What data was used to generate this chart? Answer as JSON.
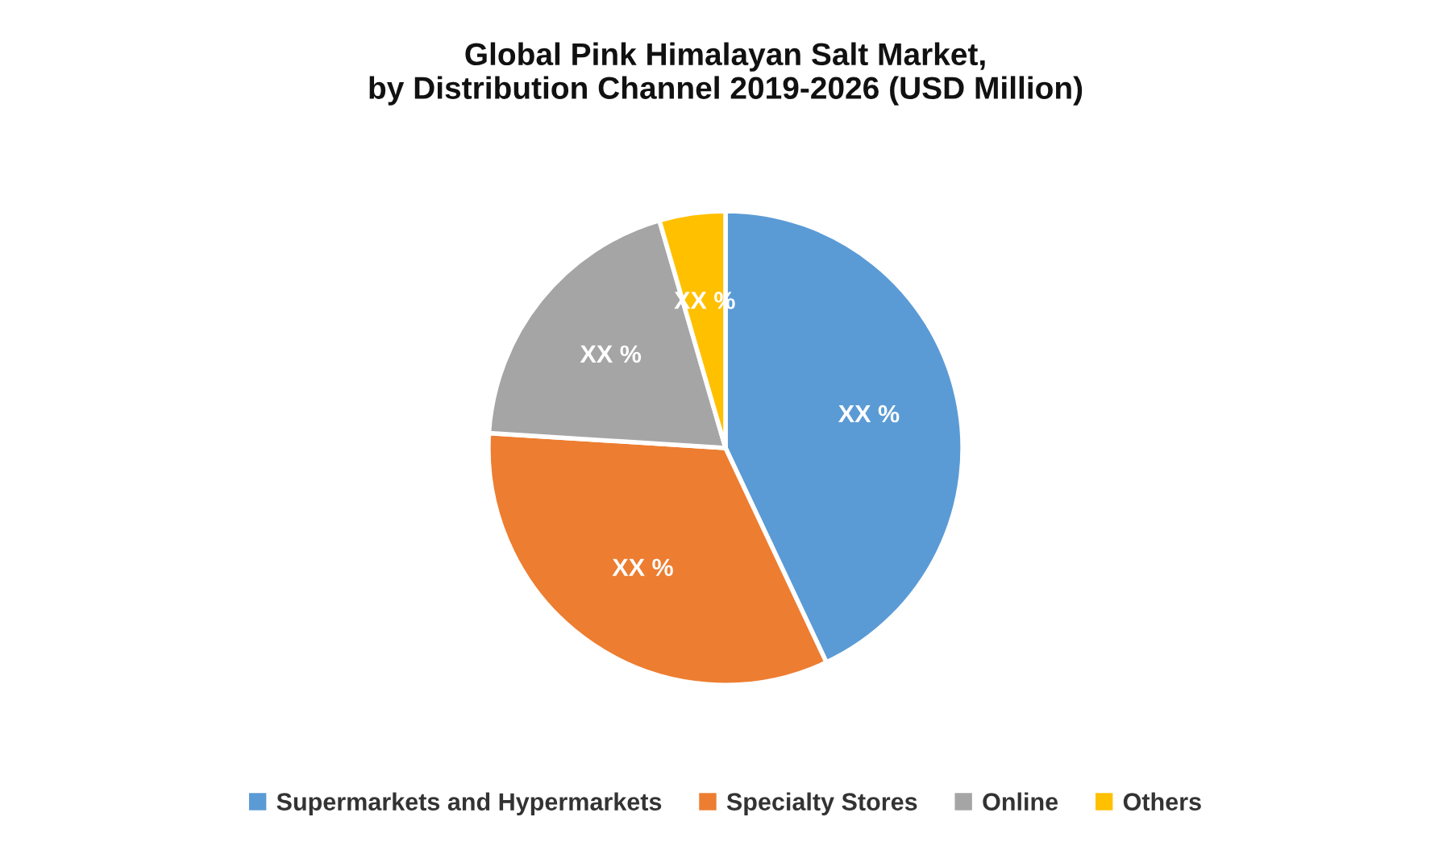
{
  "chart_data": {
    "type": "pie",
    "title": "Global Pink Himalayan Salt Market,\nby Distribution Channel 2019-2026 (USD Million)",
    "categories": [
      "Supermarkets and Hypermarkets",
      "Specialty Stores",
      "Online",
      "Others"
    ],
    "values": [
      43,
      33,
      19.5,
      4.5
    ],
    "colors": [
      "#5b9bd5",
      "#ed7d31",
      "#a5a5a5",
      "#ffc000"
    ],
    "value_labels": [
      "XX %",
      "XX %",
      "XX %",
      "XX %"
    ],
    "legend": "bottom"
  }
}
